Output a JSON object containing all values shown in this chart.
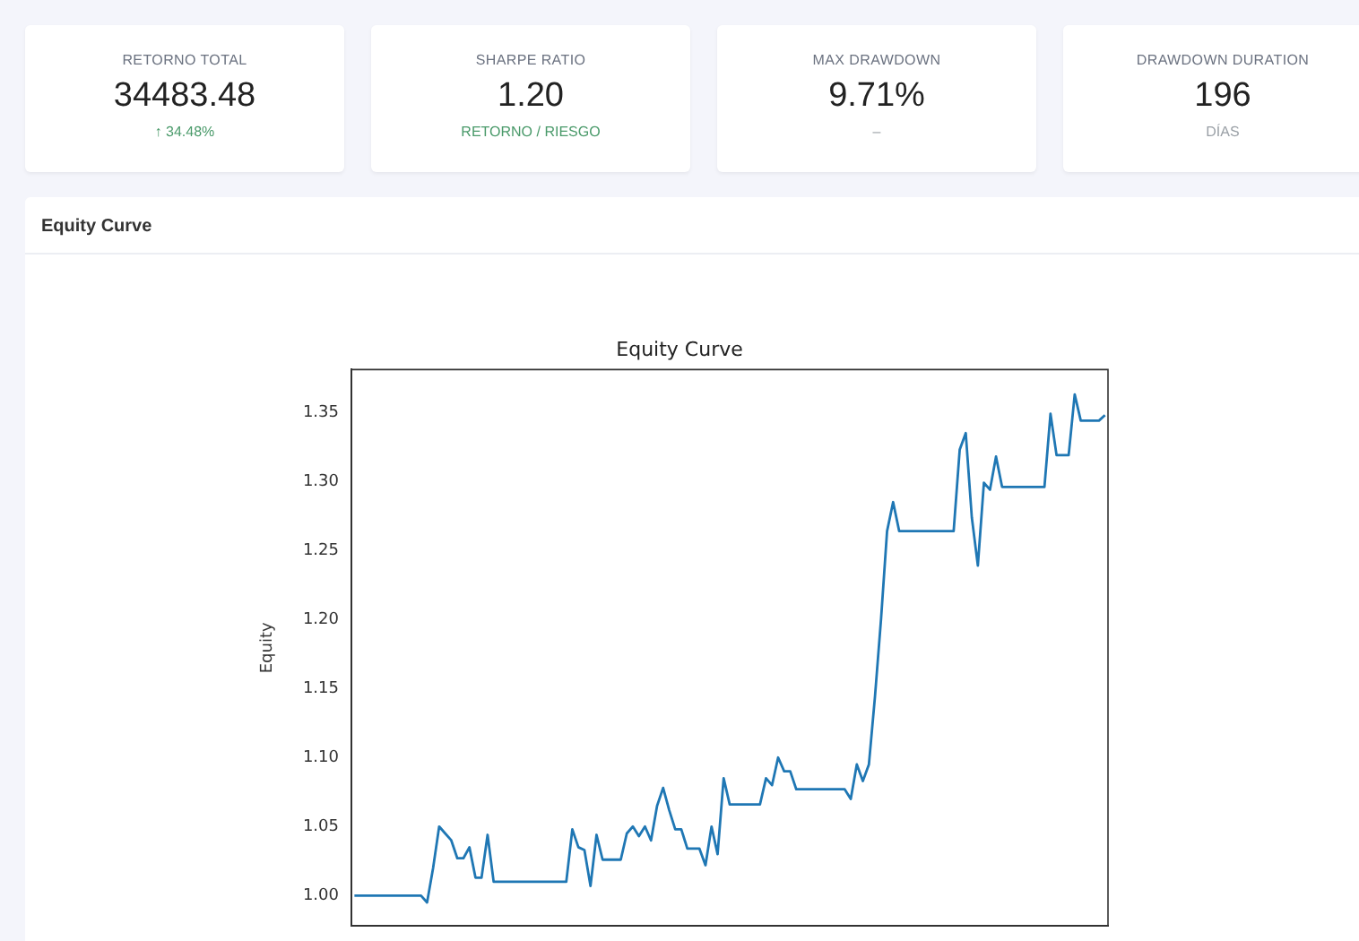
{
  "chart_data": [
    {
      "type": "other",
      "title": "RETORNO TOTAL",
      "annotations": [
        "34483.48",
        "↑ 34.48%"
      ]
    },
    {
      "type": "other",
      "title": "SHARPE RATIO",
      "annotations": [
        "1.20",
        "RETORNO / RIESGO"
      ]
    },
    {
      "type": "other",
      "title": "MAX DRAWDOWN",
      "annotations": [
        "9.71%",
        "–"
      ]
    },
    {
      "type": "other",
      "title": "DRAWDOWN DURATION",
      "annotations": [
        "196",
        "DÍAS"
      ]
    },
    {
      "type": "line",
      "title": "Equity Curve",
      "ylabel": "Equity",
      "annotations": [
        "Equity Curve"
      ],
      "tick_labels": "y",
      "marker": "none",
      "line_style": "solid",
      "categories": [
        null,
        null,
        null,
        null,
        null,
        null,
        null,
        null,
        null,
        null,
        null,
        null,
        null,
        null,
        null,
        null,
        null,
        null,
        null,
        null,
        null,
        null,
        null,
        null,
        null,
        null,
        null,
        null,
        null,
        null,
        null,
        null,
        null,
        null,
        null,
        null,
        null,
        null,
        null,
        null,
        null,
        null,
        null,
        null,
        null,
        null,
        null,
        null,
        null,
        null,
        null,
        null,
        null,
        null,
        null,
        null,
        null,
        null,
        null,
        null,
        null,
        null,
        null,
        null,
        null,
        null,
        null,
        null,
        null,
        null,
        null,
        null,
        null,
        null,
        null,
        null,
        null,
        null,
        null,
        null,
        null,
        null,
        null,
        null,
        null,
        null,
        null,
        null,
        null,
        null,
        null,
        null,
        null,
        null,
        null,
        null,
        null,
        null,
        null,
        null,
        null,
        null,
        null,
        null,
        null,
        null,
        null,
        null,
        null,
        null,
        null,
        null,
        null,
        null,
        null,
        null,
        null,
        null,
        null,
        null,
        null,
        null,
        null,
        null,
        null
      ],
      "series": [
        {
          "color": "#1f77b4",
          "values": [
            1.0,
            1.0,
            1.0,
            1.0,
            1.0,
            1.0,
            1.0,
            1.0,
            1.0,
            1.0,
            1.0,
            1.0,
            0.995,
            1.02,
            1.05,
            1.045,
            1.04,
            1.027,
            1.027,
            1.035,
            1.013,
            1.013,
            1.044,
            1.01,
            1.01,
            1.01,
            1.01,
            1.01,
            1.01,
            1.01,
            1.01,
            1.01,
            1.01,
            1.01,
            1.01,
            1.01,
            1.048,
            1.035,
            1.033,
            1.007,
            1.044,
            1.026,
            1.026,
            1.026,
            1.026,
            1.045,
            1.05,
            1.043,
            1.05,
            1.04,
            1.065,
            1.078,
            1.062,
            1.048,
            1.048,
            1.034,
            1.034,
            1.034,
            1.022,
            1.05,
            1.03,
            1.085,
            1.066,
            1.066,
            1.066,
            1.066,
            1.066,
            1.066,
            1.085,
            1.08,
            1.1,
            1.09,
            1.09,
            1.077,
            1.077,
            1.077,
            1.077,
            1.077,
            1.077,
            1.077,
            1.077,
            1.077,
            1.07,
            1.095,
            1.083,
            1.095,
            1.144,
            1.2,
            1.264,
            1.285,
            1.264,
            1.264,
            1.264,
            1.264,
            1.264,
            1.264,
            1.264,
            1.264,
            1.264,
            1.264,
            1.323,
            1.335,
            1.274,
            1.239,
            1.299,
            1.294,
            1.318,
            1.296,
            1.296,
            1.296,
            1.296,
            1.296,
            1.296,
            1.296,
            1.296,
            1.349,
            1.319,
            1.319,
            1.319,
            1.363,
            1.344,
            1.344,
            1.344,
            1.344,
            1.348
          ]
        }
      ],
      "ylim": [
        0.978,
        1.381
      ],
      "yticks": [
        {
          "value": 1.0,
          "label": "1.00"
        },
        {
          "value": 1.05,
          "label": "1.05"
        },
        {
          "value": 1.1,
          "label": "1.10"
        },
        {
          "value": 1.15,
          "label": "1.15"
        },
        {
          "value": 1.2,
          "label": "1.20"
        },
        {
          "value": 1.25,
          "label": "1.25"
        },
        {
          "value": 1.3,
          "label": "1.30"
        },
        {
          "value": 1.35,
          "label": "1.35"
        }
      ]
    }
  ]
}
